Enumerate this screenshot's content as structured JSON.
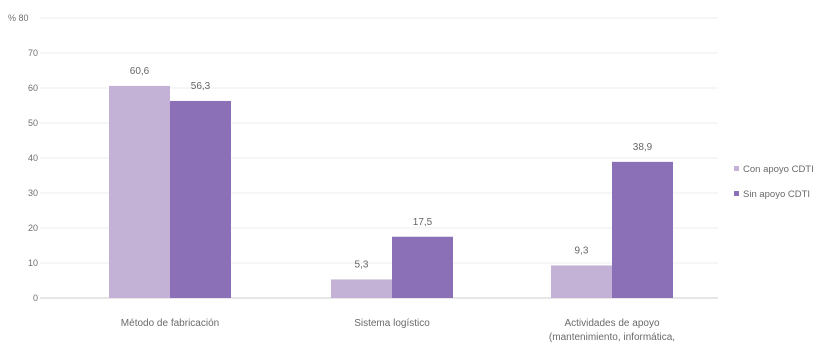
{
  "colors": {
    "con_apoyo": "#c3b2d6",
    "sin_apoyo": "#8b6fb7",
    "grid": "#ececec",
    "axis": "#cfcfcf"
  },
  "chart_data": {
    "type": "bar",
    "unit_label": "% 80",
    "categories": [
      [
        "Método de fabricación"
      ],
      [
        "Sistema logístico"
      ],
      [
        "Actividades de apoyo",
        "(mantenimiento, informática,"
      ]
    ],
    "series": [
      {
        "name": "Con apoyo CDTI",
        "values": [
          60.6,
          5.3,
          9.3
        ],
        "labels": [
          "60,6",
          "5,3",
          "9,3"
        ]
      },
      {
        "name": "Sin apoyo CDTI",
        "values": [
          56.3,
          17.5,
          38.9
        ],
        "labels": [
          "56,3",
          "17,5",
          "38,9"
        ]
      }
    ],
    "yticks": [
      "0",
      "10",
      "20",
      "30",
      "40",
      "50",
      "60",
      "70"
    ],
    "ylim": [
      0,
      80
    ],
    "grid": true,
    "legend_position": "right"
  }
}
